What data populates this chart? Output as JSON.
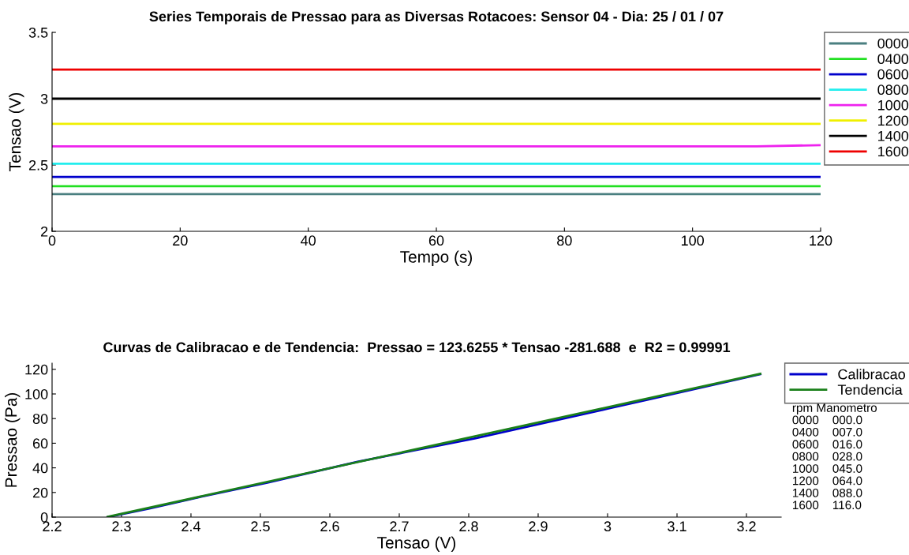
{
  "chart_data": [
    {
      "type": "line",
      "title": "Series Temporais de Pressao para as Diversas Rotacoes: Sensor 04 - Dia: 25 / 01 / 07",
      "xlabel": "Tempo (s)",
      "ylabel": "Tensao (V)",
      "x": [
        0,
        10,
        20,
        30,
        40,
        50,
        60,
        70,
        80,
        90,
        100,
        110,
        120
      ],
      "xlim": [
        0,
        120
      ],
      "xticks": [
        0,
        20,
        40,
        60,
        80,
        100,
        120
      ],
      "ylim": [
        2,
        3.5
      ],
      "yticks": [
        2,
        2.5,
        3,
        3.5
      ],
      "grid": false,
      "legend": "top right",
      "series": [
        {
          "name": "0000",
          "color": "#4a7f80",
          "values": [
            2.28,
            2.28,
            2.28,
            2.28,
            2.28,
            2.28,
            2.28,
            2.28,
            2.28,
            2.28,
            2.28,
            2.28,
            2.28
          ]
        },
        {
          "name": "0400",
          "color": "#22e022",
          "values": [
            2.34,
            2.34,
            2.34,
            2.34,
            2.34,
            2.34,
            2.34,
            2.34,
            2.34,
            2.34,
            2.34,
            2.34,
            2.34
          ]
        },
        {
          "name": "0600",
          "color": "#0000cc",
          "values": [
            2.41,
            2.41,
            2.41,
            2.41,
            2.41,
            2.41,
            2.41,
            2.41,
            2.41,
            2.41,
            2.41,
            2.41,
            2.41
          ]
        },
        {
          "name": "0800",
          "color": "#22eeee",
          "values": [
            2.51,
            2.51,
            2.51,
            2.51,
            2.51,
            2.51,
            2.51,
            2.51,
            2.51,
            2.51,
            2.51,
            2.51,
            2.51
          ]
        },
        {
          "name": "1000",
          "color": "#ee22ee",
          "values": [
            2.64,
            2.64,
            2.64,
            2.64,
            2.64,
            2.64,
            2.64,
            2.64,
            2.64,
            2.64,
            2.64,
            2.64,
            2.65
          ]
        },
        {
          "name": "1200",
          "color": "#f0f000",
          "values": [
            2.81,
            2.81,
            2.81,
            2.81,
            2.81,
            2.81,
            2.81,
            2.81,
            2.81,
            2.81,
            2.81,
            2.81,
            2.81
          ]
        },
        {
          "name": "1400",
          "color": "#000000",
          "values": [
            3.0,
            3.0,
            3.0,
            3.0,
            3.0,
            3.0,
            3.0,
            3.0,
            3.0,
            3.0,
            3.0,
            3.0,
            3.0
          ]
        },
        {
          "name": "1600",
          "color": "#ee0000",
          "values": [
            3.22,
            3.22,
            3.22,
            3.22,
            3.22,
            3.22,
            3.22,
            3.22,
            3.22,
            3.22,
            3.22,
            3.22,
            3.22
          ]
        }
      ]
    },
    {
      "type": "line",
      "title": "Curvas de Calibracao e de Tendencia:  Pressao = 123.6255 * Tensao -281.688  e  R2 = 0.99991",
      "xlabel": "Tensao (V)",
      "ylabel": "Pressao (Pa)",
      "xlim": [
        2.2,
        3.25
      ],
      "xticks": [
        2.2,
        2.3,
        2.4,
        2.5,
        2.6,
        2.7,
        2.8,
        2.9,
        3,
        3.1,
        3.2
      ],
      "ylim": [
        0,
        125
      ],
      "yticks": [
        0,
        20,
        40,
        60,
        80,
        100,
        120
      ],
      "grid": false,
      "legend": "top right",
      "series": [
        {
          "name": "Calibracao",
          "color": "#0000cc",
          "x": [
            2.28,
            2.34,
            2.41,
            2.51,
            2.64,
            2.81,
            3.0,
            3.22
          ],
          "values": [
            0,
            7,
            16,
            28,
            45,
            64,
            88,
            116
          ]
        },
        {
          "name": "Tendencia",
          "color": "#1a801a",
          "x": [
            2.28,
            3.22
          ],
          "values": [
            0.2,
            116.4
          ]
        }
      ],
      "annotations": [
        "rpm Manometro",
        "0000    000.0",
        "0400    007.0",
        "0600    016.0",
        "0800    028.0",
        "1000    045.0",
        "1200    064.0",
        "1400    088.0",
        "1600    116.0"
      ]
    }
  ]
}
